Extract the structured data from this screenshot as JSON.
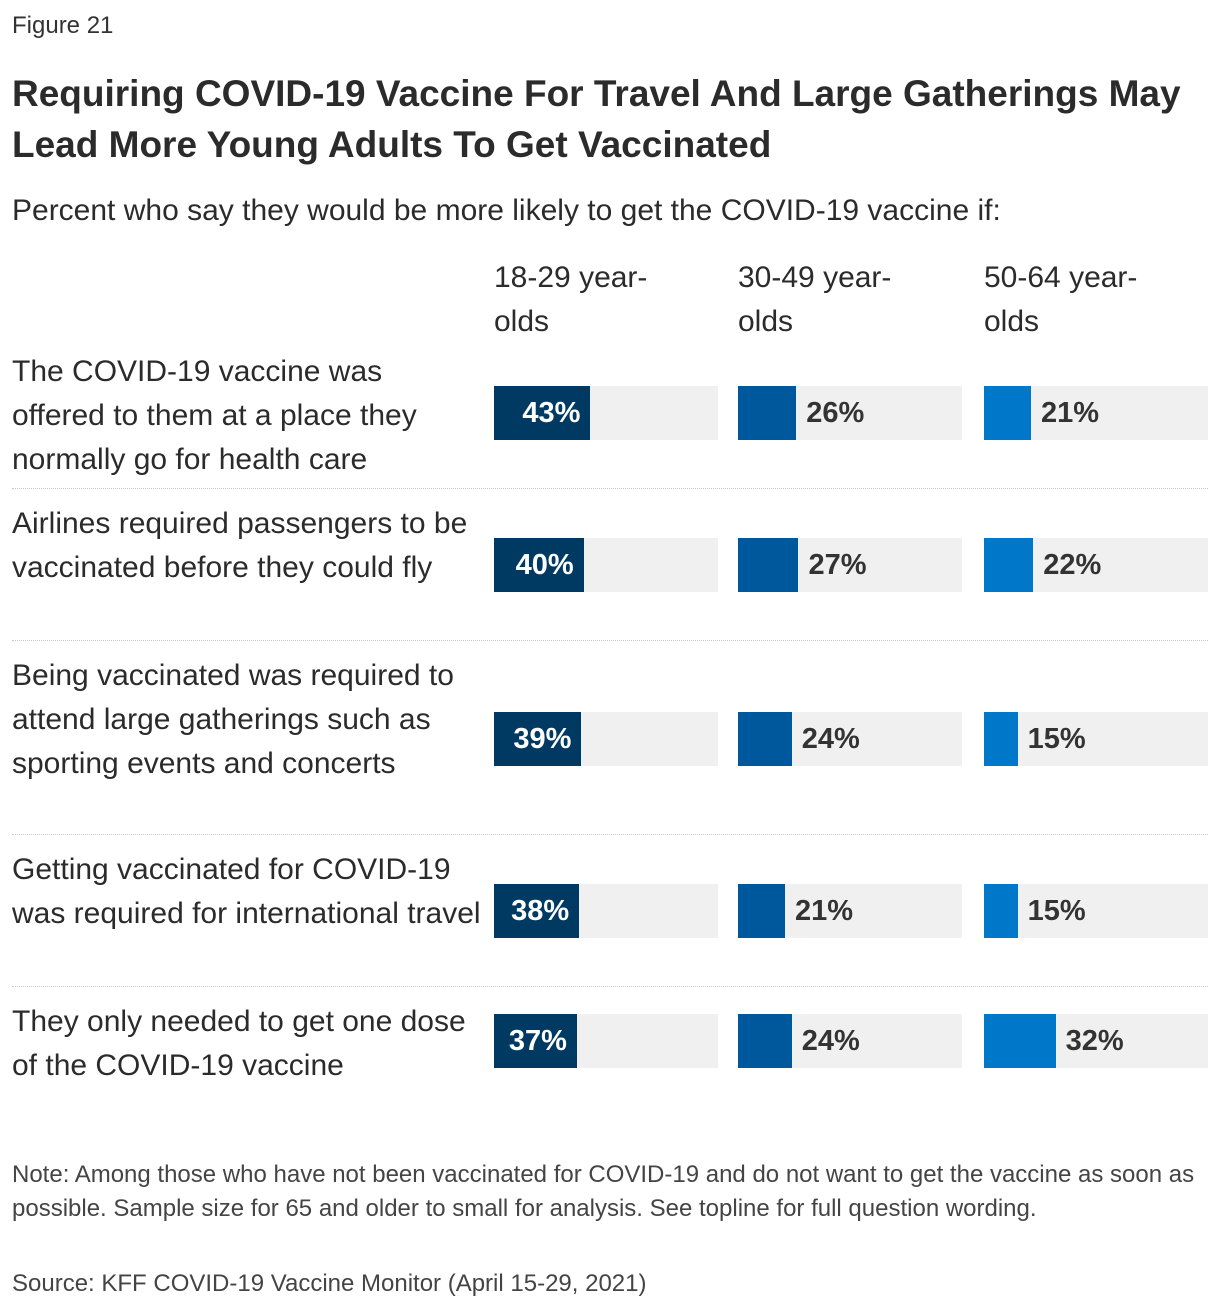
{
  "figure_label": "Figure 21",
  "chart_data": {
    "type": "bar",
    "title": "Requiring COVID-19 Vaccine For Travel And Large Gatherings May Lead More Young Adults To Get Vaccinated",
    "subtitle": "Percent who say they would be more likely to get the COVID-19 vaccine if:",
    "categories": [
      "The COVID-19 vaccine was offered to them at a place they normally go for health care",
      "Airlines required passengers to be vaccinated before they could fly",
      "Being vaccinated was required to attend large gatherings such as sporting events and concerts",
      "Getting vaccinated for COVID-19 was required for international travel",
      "They only needed to get one dose of the COVID-19 vaccine"
    ],
    "series": [
      {
        "name": "18-29 year-olds",
        "color": "#003a63",
        "values": [
          43,
          40,
          39,
          38,
          37
        ]
      },
      {
        "name": "30-49 year-olds",
        "color": "#00589c",
        "values": [
          26,
          27,
          24,
          21,
          24
        ]
      },
      {
        "name": "50-64 year-olds",
        "color": "#0077c8",
        "values": [
          21,
          22,
          15,
          15,
          32
        ]
      }
    ],
    "value_suffix": "%",
    "xlim": [
      0,
      100
    ]
  },
  "note": "Note: Among those who have not been vaccinated for COVID-19 and do not want to get the vaccine as soon as possible. Sample size for 65 and older to small for analysis. See topline for full question wording.",
  "source": "Source: KFF COVID-19 Vaccine Monitor (April 15-29, 2021)"
}
